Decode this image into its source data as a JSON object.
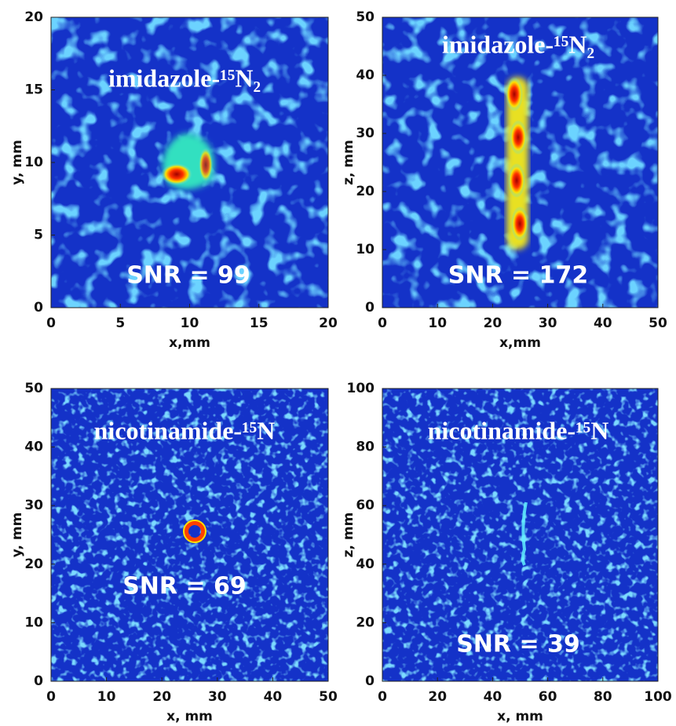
{
  "chart_data": [
    {
      "type": "image",
      "title": "imidazole-¹⁵N₂",
      "annotation": "SNR = 99",
      "xlabel": "x,mm",
      "ylabel": "y, mm",
      "xlim": [
        0,
        20
      ],
      "ylim": [
        0,
        20
      ],
      "xticks": [
        0,
        5,
        10,
        15,
        20
      ],
      "yticks": [
        0,
        5,
        10,
        15,
        20
      ]
    },
    {
      "type": "image",
      "title": "imidazole-¹⁵N₂",
      "annotation": "SNR = 172",
      "xlabel": "x,mm",
      "ylabel": "z, mm",
      "xlim": [
        0,
        50
      ],
      "ylim": [
        0,
        50
      ],
      "xticks": [
        0,
        10,
        20,
        30,
        40,
        50
      ],
      "yticks": [
        0,
        10,
        20,
        30,
        40,
        50
      ]
    },
    {
      "type": "image",
      "title": "nicotinamide-¹⁵N",
      "annotation": "SNR = 69",
      "xlabel": "x, mm",
      "ylabel": "y, mm",
      "xlim": [
        0,
        50
      ],
      "ylim": [
        0,
        50
      ],
      "xticks": [
        0,
        10,
        20,
        30,
        40,
        50
      ],
      "yticks": [
        0,
        10,
        20,
        30,
        40,
        50
      ]
    },
    {
      "type": "image",
      "title": "nicotinamide-¹⁵N",
      "annotation": "SNR = 39",
      "xlabel": "x, mm",
      "ylabel": "z, mm",
      "xlim": [
        0,
        100
      ],
      "ylim": [
        0,
        100
      ],
      "xticks": [
        0,
        20,
        40,
        60,
        80,
        100
      ],
      "yticks": [
        0,
        20,
        40,
        60,
        80,
        100
      ]
    }
  ]
}
